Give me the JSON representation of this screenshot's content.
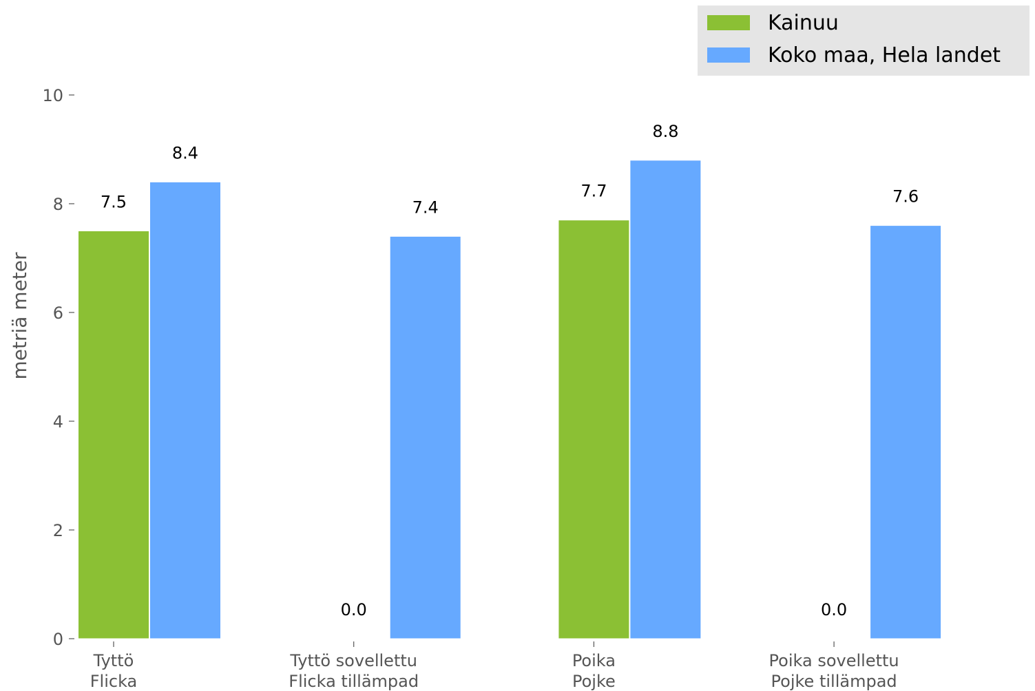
{
  "chart_data": {
    "type": "bar",
    "categories": [
      [
        "Tyttö",
        "Flicka"
      ],
      [
        "Tyttö sovellettu",
        "Flicka tillämpad"
      ],
      [
        "Poika",
        "Pojke"
      ],
      [
        "Poika sovellettu",
        "Pojke tillämpad"
      ]
    ],
    "series": [
      {
        "name": "Kainuu",
        "color": "#8bc034",
        "values": [
          7.5,
          0.0,
          7.7,
          0.0
        ],
        "labels": [
          "7.5",
          "0.0",
          "7.7",
          "0.0"
        ]
      },
      {
        "name": "Koko maa, Hela landet",
        "color": "#66a9ff",
        "values": [
          8.4,
          7.4,
          8.8,
          7.6
        ],
        "labels": [
          "8.4",
          "7.4",
          "8.8",
          "7.6"
        ]
      }
    ],
    "ylabel": "metriä meter",
    "xlabel": "",
    "title": "",
    "ylim": [
      0,
      10
    ],
    "yticks": [
      "0",
      "2",
      "4",
      "6",
      "8",
      "10"
    ],
    "grid": false,
    "legend_position": "top-right"
  }
}
